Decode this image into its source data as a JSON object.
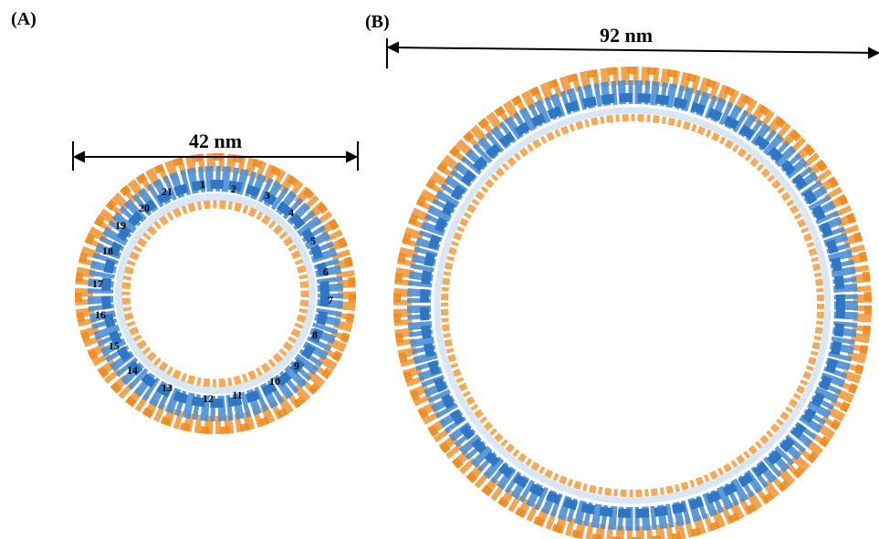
{
  "panel_a": {
    "label": "(A)",
    "scale_bar": "42 nm",
    "subunit_labels": [
      "1",
      "2",
      "3",
      "4",
      "5",
      "6",
      "7",
      "8",
      "9",
      "10",
      "11",
      "12",
      "13",
      "14",
      "15",
      "16",
      "17",
      "18",
      "19",
      "20",
      "21"
    ]
  },
  "panel_b": {
    "label": "(B)",
    "scale_bar": "92 nm"
  }
}
